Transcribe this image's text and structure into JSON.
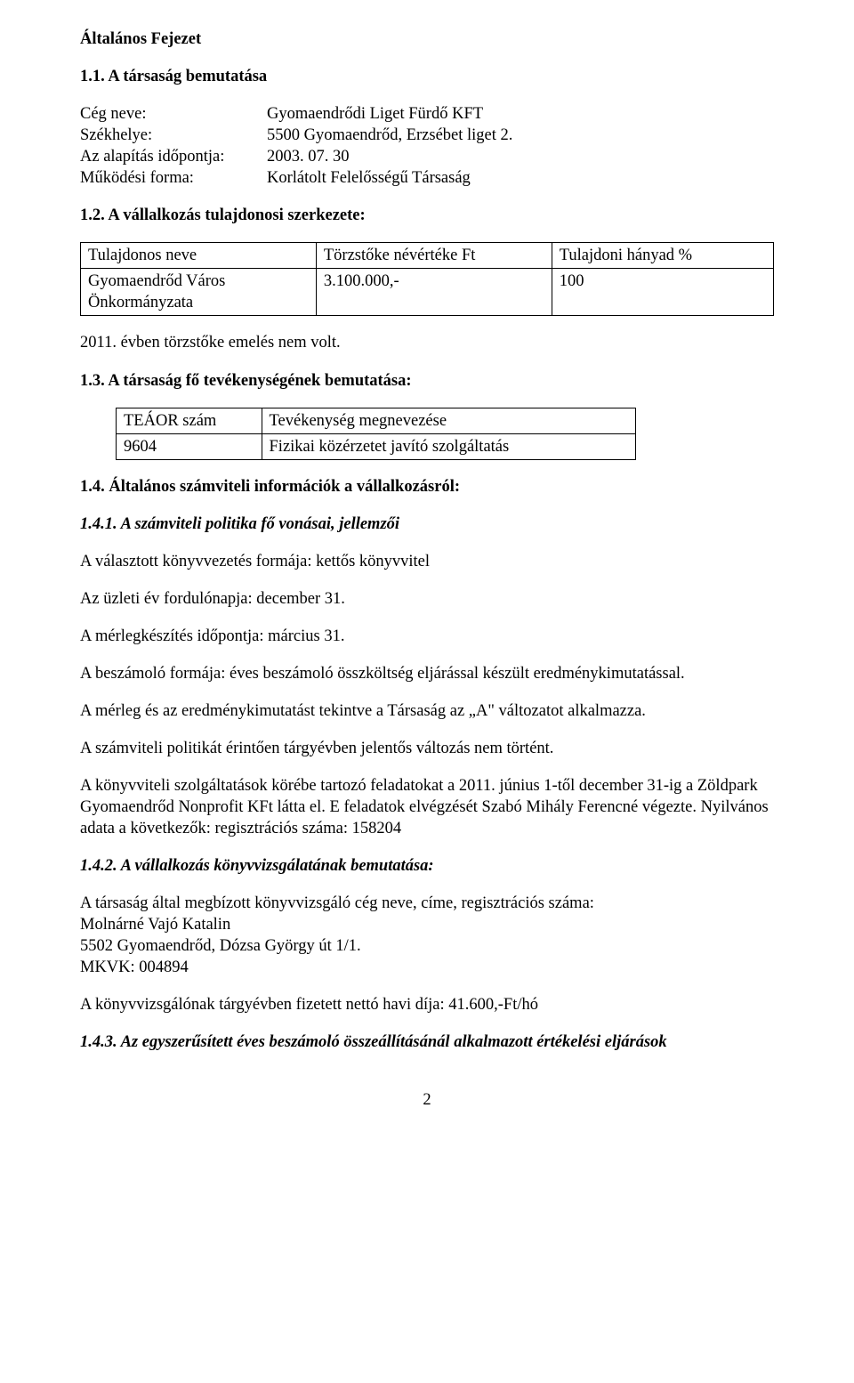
{
  "h1": "Általános Fejezet",
  "s11_title": "1.1. A társaság bemutatása",
  "company": {
    "name_label": "Cég neve:",
    "name_value": "Gyomaendrődi Liget Fürdő KFT",
    "seat_label": "Székhelye:",
    "seat_value": "5500 Gyomaendrőd, Erzsébet liget 2.",
    "founded_label": "Az alapítás időpontja:",
    "founded_value": "2003. 07. 30",
    "form_label": "Működési forma:",
    "form_value": "Korlátolt Felelősségű Társaság"
  },
  "s12_title": "1.2. A vállalkozás tulajdonosi szerkezete:",
  "owner_table": {
    "h1": "Tulajdonos neve",
    "h2": "Törzstőke névértéke Ft",
    "h3": "Tulajdoni hányad %",
    "r1c1a": "Gyomaendrőd Város",
    "r1c1b": "Önkormányzata",
    "r1c2": "3.100.000,-",
    "r1c3": "100"
  },
  "p_torzstoke": "2011. évben törzstőke emelés nem volt.",
  "s13_title": "1.3. A társaság fő tevékenységének bemutatása:",
  "activity_table": {
    "h1": "TEÁOR szám",
    "h2": "Tevékenység megnevezése",
    "r1c1": "9604",
    "r1c2": "Fizikai közérzetet javító szolgáltatás"
  },
  "s14_title": "1.4. Általános számviteli információk a vállalkozásról:",
  "s141_title": "1.4.1. A számviteli politika fő vonásai, jellemzői",
  "p_book": "A választott könyvvezetés formája: kettős könyvvitel",
  "p_fordulo": "Az üzleti év fordulónapja: december 31.",
  "p_merlegkeszites": "A mérlegkészítés időpontja: március 31.",
  "p_beszamolo": "A beszámoló formája: éves beszámoló összköltség eljárással készült eredménykimutatással.",
  "p_valtozat": "A mérleg és az eredménykimutatást tekintve a Társaság az „A\" változatot alkalmazza.",
  "p_politika": "A számviteli politikát érintően tárgyévben jelentős változás nem történt.",
  "p_konyvvitel": "A könyvviteli szolgáltatások körébe tartozó feladatokat a 2011. június 1-től december 31-ig a Zöldpark Gyomaendrőd Nonprofit KFt látta el. E feladatok elvégzését Szabó Mihály Ferencné végezte. Nyilvános adata a következők: regisztrációs száma: 158204",
  "s142_title": "1.4.2. A vállalkozás könyvvizsgálatának bemutatása:",
  "p_auditor_intro": "A társaság által megbízott könyvvizsgáló cég neve, címe, regisztrációs száma:",
  "p_auditor_name": "Molnárné Vajó Katalin",
  "p_auditor_addr": "5502 Gyomaendrőd, Dózsa György út 1/1.",
  "p_auditor_mkvk": "MKVK: 004894",
  "p_auditor_fee": "A könyvvizsgálónak tárgyévben fizetett nettó havi díja: 41.600,-Ft/hó",
  "s143_title": "1.4.3. Az egyszerűsített éves beszámoló összeállításánál alkalmazott értékelési eljárások",
  "page_number": "2"
}
